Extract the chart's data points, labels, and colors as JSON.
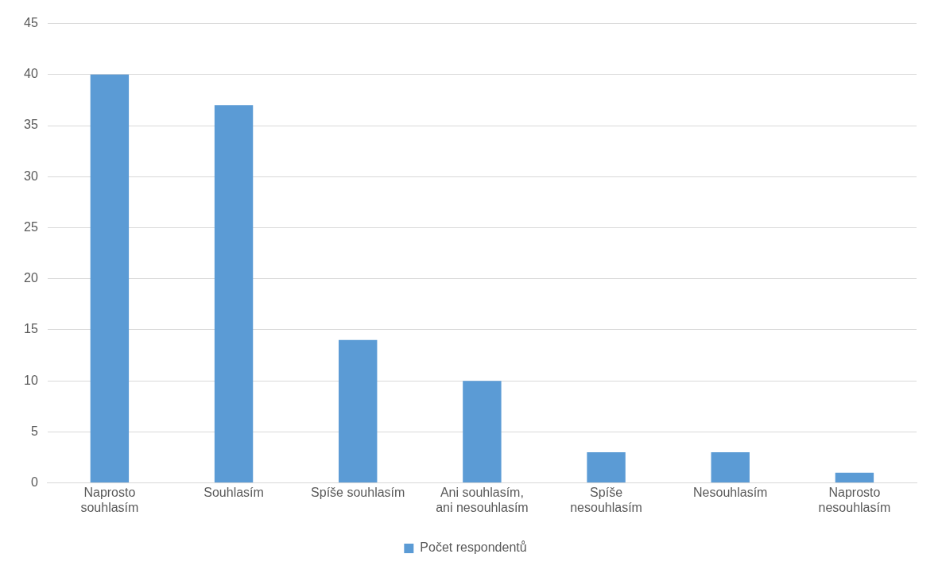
{
  "chart_data": {
    "type": "bar",
    "categories": [
      "Naprosto souhlasím",
      "Souhlasím",
      "Spíše souhlasím",
      "Ani souhlasím, ani nesouhlasím",
      "Spíše nesouhlasím",
      "Nesouhlasím",
      "Naprosto nesouhlasím"
    ],
    "series": [
      {
        "name": "Počet respondentů",
        "color": "#5b9bd5",
        "values": [
          40,
          37,
          14,
          10,
          3,
          3,
          1
        ]
      }
    ],
    "ylim": [
      0,
      45
    ],
    "yticks": [
      0,
      5,
      10,
      15,
      20,
      25,
      30,
      35,
      40,
      45
    ],
    "grid": "y",
    "legend": "bottom"
  }
}
